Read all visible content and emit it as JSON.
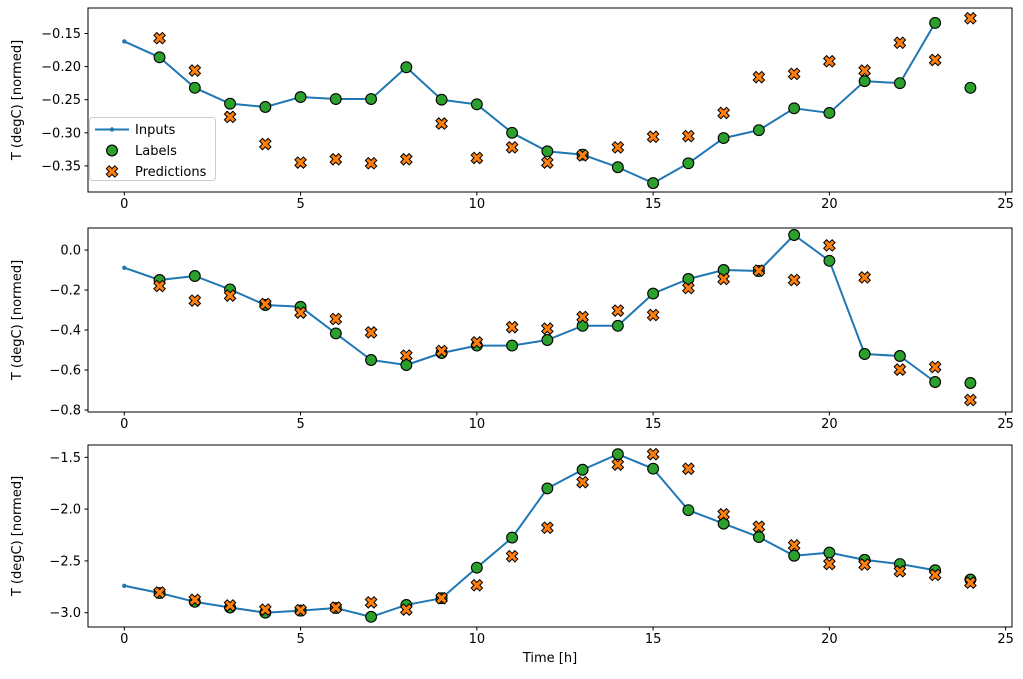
{
  "figure": {
    "xlabel": "Time [h]",
    "ylabel": "T (degC) [normed]",
    "background": "#ffffff",
    "colors": {
      "inputs": "#1f77b4",
      "labels": "#2ca02c",
      "predictions": "#ff7f0e",
      "marker_edge": "#000000",
      "legend_border": "#cccccc"
    },
    "legend": {
      "position": "upper-left-area-of-first-subplot",
      "items": [
        {
          "label": "Inputs",
          "marker": "line-dot",
          "color": "#1f77b4"
        },
        {
          "label": "Labels",
          "marker": "circle",
          "color": "#2ca02c"
        },
        {
          "label": "Predictions",
          "marker": "x",
          "color": "#ff7f0e"
        }
      ]
    }
  },
  "chart_data": [
    {
      "type": "line",
      "name": "subplot-top",
      "ylabel": "T (degC) [normed]",
      "xlabel": "",
      "xlim": [
        -1.03,
        25.18
      ],
      "ylim": [
        -0.3894,
        -0.1115
      ],
      "xticks": [
        0,
        5,
        10,
        15,
        20,
        25
      ],
      "xtick_labels": [
        "0",
        "5",
        "10",
        "15",
        "20",
        "25"
      ],
      "yticks": [
        -0.15,
        -0.2,
        -0.25,
        -0.3,
        -0.35
      ],
      "ytick_labels": [
        "−0.15",
        "−0.20",
        "−0.25",
        "−0.30",
        "−0.35"
      ],
      "grid": false,
      "legend_visible": true,
      "series": [
        {
          "name": "Inputs",
          "style": "line-dot",
          "x": [
            0,
            1,
            2,
            3,
            4,
            5,
            6,
            7,
            8,
            9,
            10,
            11,
            12,
            13,
            14,
            15,
            16,
            17,
            18,
            19,
            20,
            21,
            22,
            23
          ],
          "y": [
            -0.162,
            -0.186,
            -0.232,
            -0.256,
            -0.261,
            -0.246,
            -0.249,
            -0.249,
            -0.201,
            -0.25,
            -0.257,
            -0.3,
            -0.328,
            -0.333,
            -0.352,
            -0.376,
            -0.346,
            -0.308,
            -0.296,
            -0.263,
            -0.27,
            -0.222,
            -0.225,
            -0.134
          ]
        },
        {
          "name": "Labels",
          "style": "circle",
          "x": [
            1,
            2,
            3,
            4,
            5,
            6,
            7,
            8,
            9,
            10,
            11,
            12,
            13,
            14,
            15,
            16,
            17,
            18,
            19,
            20,
            21,
            22,
            23,
            24
          ],
          "y": [
            -0.186,
            -0.232,
            -0.256,
            -0.261,
            -0.246,
            -0.249,
            -0.249,
            -0.201,
            -0.25,
            -0.257,
            -0.3,
            -0.328,
            -0.333,
            -0.352,
            -0.376,
            -0.346,
            -0.308,
            -0.296,
            -0.263,
            -0.27,
            -0.222,
            -0.225,
            -0.134,
            -0.232
          ]
        },
        {
          "name": "Predictions",
          "style": "x",
          "x": [
            1,
            2,
            3,
            4,
            5,
            6,
            7,
            8,
            9,
            10,
            11,
            12,
            13,
            14,
            15,
            16,
            17,
            18,
            19,
            20,
            21,
            22,
            23,
            24
          ],
          "y": [
            -0.157,
            -0.206,
            -0.276,
            -0.317,
            -0.345,
            -0.34,
            -0.346,
            -0.34,
            -0.286,
            -0.338,
            -0.322,
            -0.345,
            -0.334,
            -0.322,
            -0.306,
            -0.305,
            -0.27,
            -0.216,
            -0.211,
            -0.192,
            -0.206,
            -0.164,
            -0.19,
            -0.127
          ]
        }
      ]
    },
    {
      "type": "line",
      "name": "subplot-middle",
      "ylabel": "T (degC) [normed]",
      "xlabel": "",
      "xlim": [
        -1.03,
        25.18
      ],
      "ylim": [
        -0.81,
        0.11
      ],
      "xticks": [
        0,
        5,
        10,
        15,
        20,
        25
      ],
      "xtick_labels": [
        "0",
        "5",
        "10",
        "15",
        "20",
        "25"
      ],
      "yticks": [
        0.0,
        -0.2,
        -0.4,
        -0.6,
        -0.8
      ],
      "ytick_labels": [
        "0.0",
        "−0.2",
        "−0.4",
        "−0.6",
        "−0.8"
      ],
      "grid": false,
      "legend_visible": false,
      "series": [
        {
          "name": "Inputs",
          "style": "line-dot",
          "x": [
            0,
            1,
            2,
            3,
            4,
            5,
            6,
            7,
            8,
            9,
            10,
            11,
            12,
            13,
            14,
            15,
            16,
            17,
            18,
            19,
            20,
            21,
            22,
            23
          ],
          "y": [
            -0.089,
            -0.15,
            -0.13,
            -0.197,
            -0.275,
            -0.284,
            -0.417,
            -0.55,
            -0.575,
            -0.515,
            -0.478,
            -0.478,
            -0.45,
            -0.379,
            -0.379,
            -0.218,
            -0.145,
            -0.1,
            -0.105,
            0.075,
            -0.054,
            -0.52,
            -0.53,
            -0.66
          ]
        },
        {
          "name": "Labels",
          "style": "circle",
          "x": [
            1,
            2,
            3,
            4,
            5,
            6,
            7,
            8,
            9,
            10,
            11,
            12,
            13,
            14,
            15,
            16,
            17,
            18,
            19,
            20,
            21,
            22,
            23,
            24
          ],
          "y": [
            -0.15,
            -0.13,
            -0.197,
            -0.275,
            -0.284,
            -0.417,
            -0.55,
            -0.575,
            -0.515,
            -0.478,
            -0.478,
            -0.45,
            -0.379,
            -0.379,
            -0.218,
            -0.145,
            -0.1,
            -0.105,
            0.075,
            -0.054,
            -0.52,
            -0.53,
            -0.66,
            -0.665
          ]
        },
        {
          "name": "Predictions",
          "style": "x",
          "x": [
            1,
            2,
            3,
            4,
            5,
            6,
            7,
            8,
            9,
            10,
            11,
            12,
            13,
            14,
            15,
            16,
            17,
            18,
            19,
            20,
            21,
            22,
            23,
            24
          ],
          "y": [
            -0.18,
            -0.253,
            -0.228,
            -0.27,
            -0.313,
            -0.345,
            -0.412,
            -0.528,
            -0.505,
            -0.462,
            -0.386,
            -0.393,
            -0.335,
            -0.303,
            -0.325,
            -0.19,
            -0.145,
            -0.103,
            -0.15,
            0.023,
            -0.137,
            -0.598,
            -0.585,
            -0.75
          ]
        }
      ]
    },
    {
      "type": "line",
      "name": "subplot-bottom",
      "ylabel": "T (degC) [normed]",
      "xlabel": "Time [h]",
      "xlim": [
        -1.03,
        25.18
      ],
      "ylim": [
        -3.138,
        -1.381
      ],
      "xticks": [
        0,
        5,
        10,
        15,
        20,
        25
      ],
      "xtick_labels": [
        "0",
        "5",
        "10",
        "15",
        "20",
        "25"
      ],
      "yticks": [
        -1.5,
        -2.0,
        -2.5,
        -3.0
      ],
      "ytick_labels": [
        "−1.5",
        "−2.0",
        "−2.5",
        "−3.0"
      ],
      "grid": false,
      "legend_visible": false,
      "series": [
        {
          "name": "Inputs",
          "style": "line-dot",
          "x": [
            0,
            1,
            2,
            3,
            4,
            5,
            6,
            7,
            8,
            9,
            10,
            11,
            12,
            13,
            14,
            15,
            16,
            17,
            18,
            19,
            20,
            21,
            22,
            23
          ],
          "y": [
            -2.74,
            -2.81,
            -2.895,
            -2.95,
            -3.0,
            -2.98,
            -2.955,
            -3.04,
            -2.925,
            -2.86,
            -2.565,
            -2.275,
            -1.8,
            -1.62,
            -1.47,
            -1.61,
            -2.01,
            -2.14,
            -2.27,
            -2.45,
            -2.42,
            -2.49,
            -2.53,
            -2.59
          ]
        },
        {
          "name": "Labels",
          "style": "circle",
          "x": [
            1,
            2,
            3,
            4,
            5,
            6,
            7,
            8,
            9,
            10,
            11,
            12,
            13,
            14,
            15,
            16,
            17,
            18,
            19,
            20,
            21,
            22,
            23,
            24
          ],
          "y": [
            -2.81,
            -2.895,
            -2.95,
            -3.0,
            -2.98,
            -2.955,
            -3.04,
            -2.925,
            -2.86,
            -2.565,
            -2.275,
            -1.8,
            -1.62,
            -1.47,
            -1.61,
            -2.01,
            -2.14,
            -2.27,
            -2.45,
            -2.42,
            -2.49,
            -2.53,
            -2.59,
            -2.68
          ]
        },
        {
          "name": "Predictions",
          "style": "x",
          "x": [
            1,
            2,
            3,
            4,
            5,
            6,
            7,
            8,
            9,
            10,
            11,
            12,
            13,
            14,
            15,
            16,
            17,
            18,
            19,
            20,
            21,
            22,
            23,
            24
          ],
          "y": [
            -2.805,
            -2.875,
            -2.93,
            -2.97,
            -2.975,
            -2.95,
            -2.9,
            -2.97,
            -2.86,
            -2.735,
            -2.455,
            -2.18,
            -1.74,
            -1.57,
            -1.47,
            -1.61,
            -2.05,
            -2.17,
            -2.35,
            -2.53,
            -2.535,
            -2.6,
            -2.635,
            -2.71
          ]
        }
      ]
    }
  ]
}
